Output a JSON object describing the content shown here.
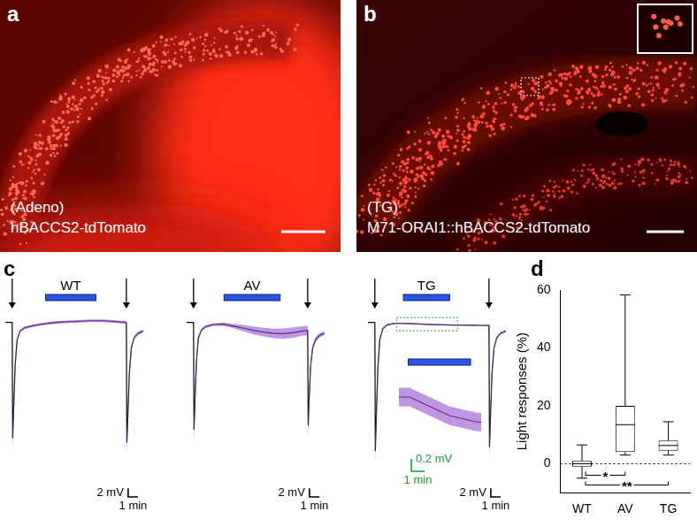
{
  "images": [
    {
      "panel": "a",
      "lines": [
        "(Adeno)",
        "hBACCS2-tdTomato"
      ]
    },
    {
      "panel": "b",
      "lines": [
        "(TG)",
        "M71-ORAI1::hBACCS2-tdTomato"
      ]
    }
  ],
  "trace_panel": "c",
  "chart_data": [
    {
      "type": "line",
      "title": "WT",
      "color": "#000000",
      "x": [
        -0.7,
        -0.3,
        0,
        0.05,
        0.15,
        0.3,
        0.5,
        0.8,
        1.2,
        2,
        3,
        4,
        5,
        6,
        7,
        8,
        9,
        10,
        11,
        11.6,
        11.65,
        11.75,
        11.9,
        12.1,
        12.4,
        12.8,
        13.3
      ],
      "values": [
        0,
        0,
        0,
        -27,
        -20,
        -10,
        -4,
        -2,
        -1.3,
        -0.8,
        -0.4,
        -0.1,
        0.1,
        0.2,
        0.3,
        0.4,
        0.4,
        0.3,
        0.1,
        0,
        -28,
        -22,
        -12,
        -6,
        -3.5,
        -2.5,
        -2
      ],
      "sem": [
        0,
        0,
        0,
        2.5,
        2,
        1,
        0.4,
        0.3,
        0.3,
        0.3,
        0.3,
        0.3,
        0.3,
        0.3,
        0.3,
        0.3,
        0.3,
        0.3,
        0.3,
        0.3,
        2.5,
        2,
        1,
        0.6,
        0.4,
        0.4,
        0.4
      ],
      "light": [
        3.4,
        8.5
      ],
      "stimuli": [
        0,
        11.6
      ],
      "xlim": [
        -0.7,
        13.5
      ],
      "ylim": [
        -32,
        2
      ],
      "tick_labels": false,
      "grid": false,
      "scale_bar": {
        "x": 1,
        "x_label": "1 min",
        "y": 2,
        "y_label": "2 mV"
      }
    },
    {
      "type": "line",
      "title": "AV",
      "color": "#000000",
      "x": [
        -0.7,
        -0.3,
        0,
        0.05,
        0.15,
        0.3,
        0.5,
        0.8,
        1.2,
        2,
        3,
        4,
        5,
        6,
        7,
        8,
        9,
        10,
        11,
        11.6,
        11.65,
        11.75,
        11.9,
        12.1,
        12.4,
        12.8,
        13.3
      ],
      "values": [
        0,
        0,
        0,
        -25,
        -18,
        -9,
        -3.5,
        -1.8,
        -1,
        -0.5,
        -0.4,
        -0.8,
        -1.3,
        -1.8,
        -2.2,
        -2.5,
        -2.6,
        -2.4,
        -2,
        -1.9,
        -24,
        -18,
        -10,
        -6,
        -4,
        -3,
        -2.5
      ],
      "sem": [
        0,
        0,
        0,
        3,
        2.5,
        1.2,
        0.5,
        0.3,
        0.3,
        0.3,
        0.4,
        0.5,
        0.7,
        0.9,
        1,
        1.1,
        1.2,
        1.2,
        1.1,
        1.1,
        3,
        2.5,
        1.2,
        0.8,
        0.6,
        0.5,
        0.5
      ],
      "light": [
        3.1,
        8.8
      ],
      "stimuli": [
        0,
        11.6
      ],
      "xlim": [
        -0.7,
        13.5
      ],
      "ylim": [
        -32,
        2
      ],
      "tick_labels": false,
      "grid": false,
      "scale_bar": {
        "x": 1,
        "x_label": "1 min",
        "y": 2,
        "y_label": "2 mV"
      }
    },
    {
      "type": "line",
      "title": "TG",
      "color": "#000000",
      "x": [
        -0.7,
        -0.3,
        0,
        0.05,
        0.15,
        0.3,
        0.5,
        0.8,
        1.2,
        2,
        3,
        4,
        5,
        6,
        7,
        8,
        9,
        10,
        11,
        11.6,
        11.65,
        11.75,
        11.9,
        12.1,
        12.4,
        12.8,
        13.3
      ],
      "values": [
        0,
        0,
        0,
        -30,
        -22,
        -11,
        -4,
        -1.5,
        -0.6,
        -0.2,
        -0.2,
        -0.3,
        -0.4,
        -0.5,
        -0.55,
        -0.6,
        -0.62,
        -0.65,
        -0.68,
        -0.7,
        -29,
        -22,
        -12,
        -6,
        -3.5,
        -2.5,
        -2
      ],
      "sem": [
        0,
        0,
        0,
        3,
        2.5,
        1.2,
        0.5,
        0.3,
        0.2,
        0.15,
        0.15,
        0.15,
        0.15,
        0.15,
        0.15,
        0.15,
        0.15,
        0.15,
        0.15,
        0.15,
        3,
        2.5,
        1.2,
        0.6,
        0.4,
        0.3,
        0.3
      ],
      "light": [
        2.9,
        7.6
      ],
      "stimuli": [
        0,
        11.6
      ],
      "xlim": [
        -0.7,
        13.5
      ],
      "ylim": [
        -32,
        2
      ],
      "tick_labels": false,
      "grid": false,
      "scale_bar": {
        "x": 1,
        "x_label": "1 min",
        "y": 2,
        "y_label": "2 mV"
      },
      "inset": {
        "xlim": [
          2.2,
          8.4
        ],
        "ylim": [
          -0.9,
          0.1
        ],
        "scale_bar": {
          "x": 1,
          "x_label": "1 min",
          "y": 0.2,
          "y_label": "0.2 mV"
        }
      }
    },
    {
      "type": "box",
      "panel": "d",
      "categories": [
        "WT",
        "AV",
        "TG"
      ],
      "min": [
        -5,
        3,
        3
      ],
      "q1": [
        -1,
        4,
        4.5
      ],
      "median": [
        0,
        13.5,
        6.3
      ],
      "q3": [
        1,
        20,
        8
      ],
      "max": [
        6.5,
        58.3,
        14.5
      ],
      "color": "#000000",
      "ylim": [
        -10,
        60
      ],
      "yticks": [
        0,
        20,
        40,
        60
      ],
      "y_label": "Light responses (%)",
      "reference_line": 0,
      "grid": false,
      "significance": [
        {
          "from": "WT",
          "to": "AV",
          "label": "*"
        },
        {
          "from": "WT",
          "to": "TG",
          "label": "**"
        }
      ]
    }
  ]
}
